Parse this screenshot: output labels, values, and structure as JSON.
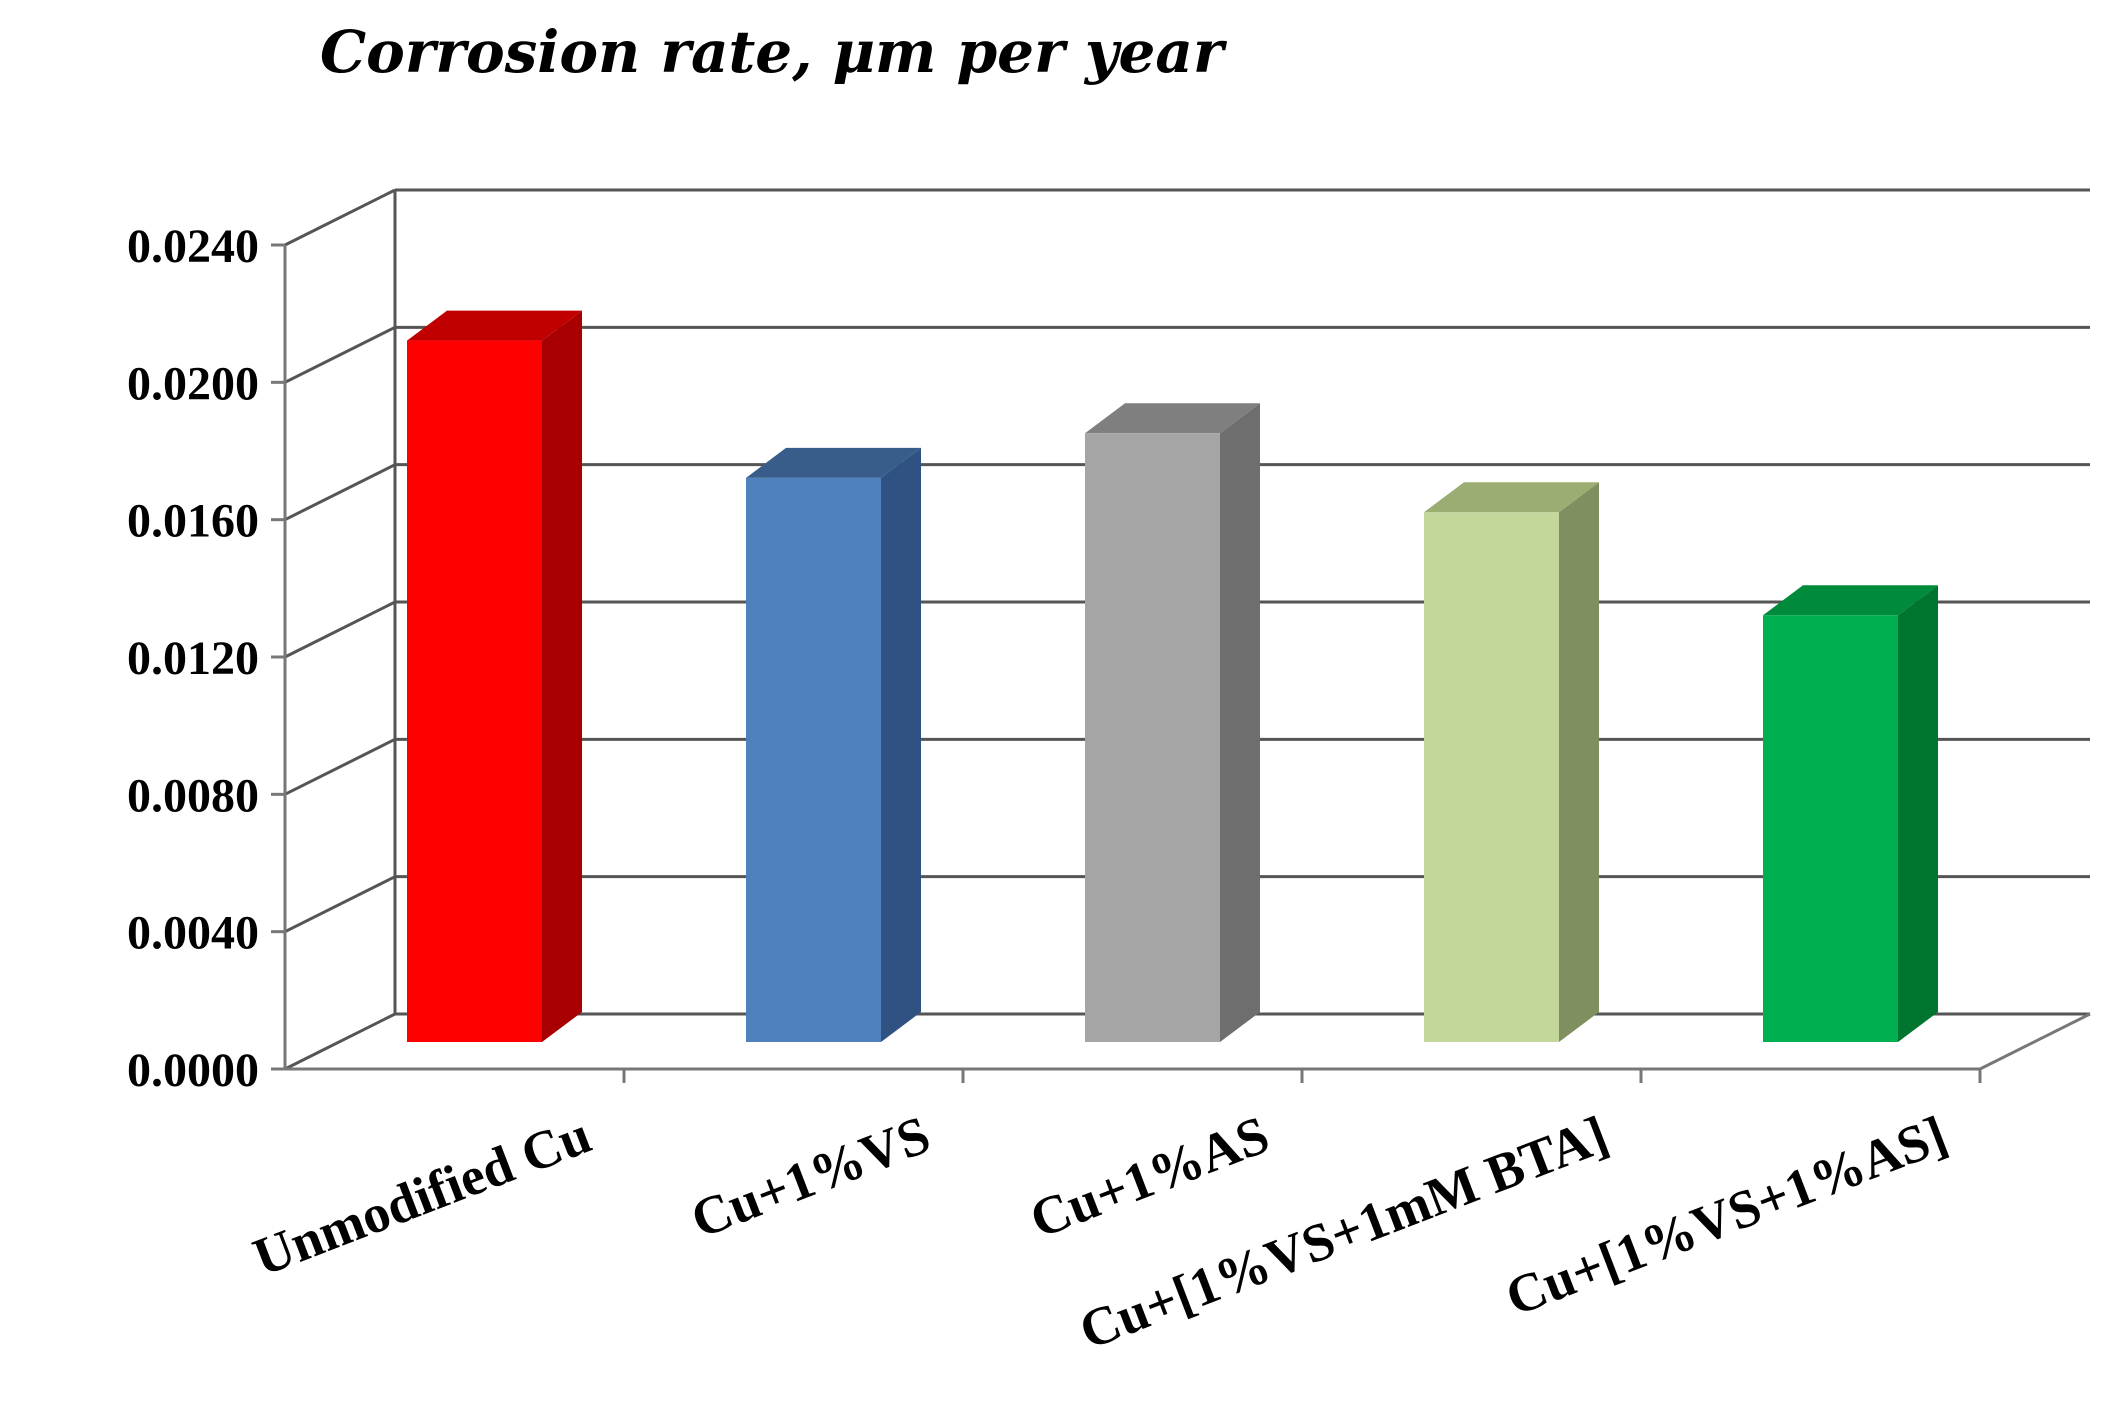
{
  "chart_data": {
    "type": "bar",
    "title": "Corrosion rate, μm per year",
    "xlabel": "",
    "ylabel": "",
    "categories": [
      "Unmodified Cu",
      "Cu+1%VS",
      "Cu+1%AS",
      "Cu+[1%VS+1mM BTA]",
      "Cu+[1%VS+1%AS]"
    ],
    "values": [
      0.0211,
      0.0171,
      0.0184,
      0.0161,
      0.0131
    ],
    "ylim": [
      0,
      0.024
    ],
    "yticks": [
      "0.0000",
      "0.0040",
      "0.0080",
      "0.0120",
      "0.0160",
      "0.0200",
      "0.0240"
    ],
    "grid": true,
    "legend": "none",
    "three_d": true,
    "colors": [
      {
        "front": "#ff0000",
        "side": "#a80000",
        "top": "#c00000"
      },
      {
        "front": "#4f81bd",
        "side": "#2f5282",
        "top": "#385d8a"
      },
      {
        "front": "#a5a5a5",
        "side": "#6e6e6e",
        "top": "#7f7f7f"
      },
      {
        "front": "#c4d79b",
        "side": "#7f8f5f",
        "top": "#9bad72"
      },
      {
        "front": "#00b050",
        "side": "#00752f",
        "top": "#008a3c"
      }
    ]
  }
}
